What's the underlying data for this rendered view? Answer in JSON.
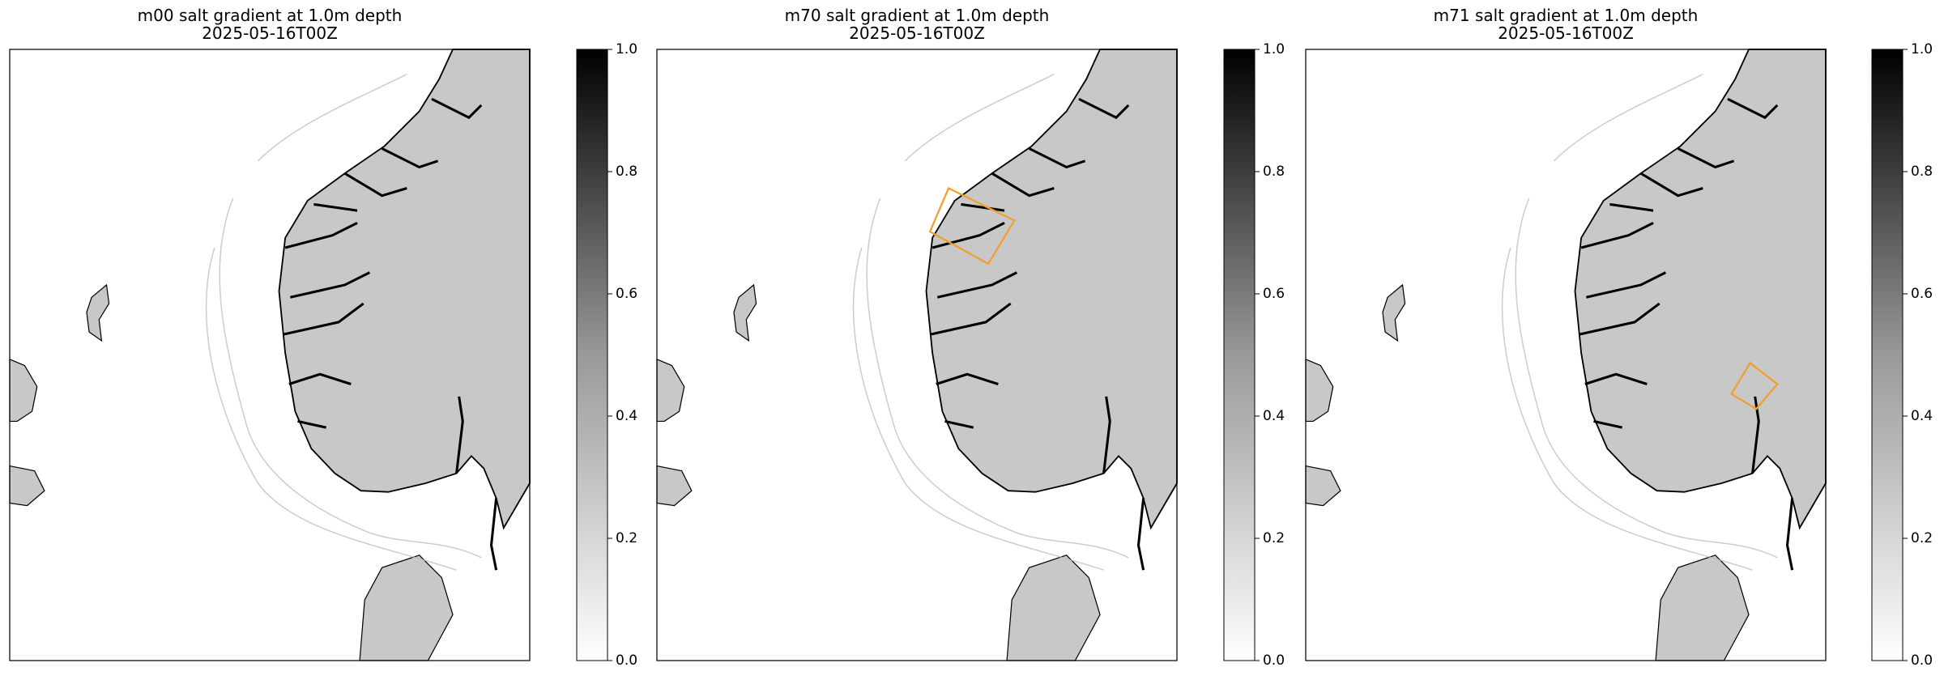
{
  "panels": [
    {
      "title": "m00 salt gradient at 1.0m depth",
      "subtitle": "2025-05-16T00Z",
      "colorbar": {
        "lim": [
          0,
          1
        ],
        "ticks": [
          {
            "value": 0,
            "label": "0.0"
          },
          {
            "value": 0.2,
            "label": "0.2"
          },
          {
            "value": 0.4,
            "label": "0.4"
          },
          {
            "value": 0.6,
            "label": "0.6"
          },
          {
            "value": 0.8,
            "label": "0.8"
          },
          {
            "value": 1,
            "label": "1.0"
          }
        ]
      }
    },
    {
      "title": "m70 salt gradient at 1.0m depth",
      "subtitle": "2025-05-16T00Z",
      "colorbar": {
        "lim": [
          0,
          1
        ],
        "ticks": [
          {
            "value": 0,
            "label": "0.0"
          },
          {
            "value": 0.2,
            "label": "0.2"
          },
          {
            "value": 0.4,
            "label": "0.4"
          },
          {
            "value": 0.6,
            "label": "0.6"
          },
          {
            "value": 0.8,
            "label": "0.8"
          },
          {
            "value": 1,
            "label": "1.0"
          }
        ]
      }
    },
    {
      "title": "m71 salt gradient at 1.0m depth",
      "subtitle": "2025-05-16T00Z",
      "colorbar": {
        "lim": [
          0,
          1
        ],
        "ticks": [
          {
            "value": 0,
            "label": "0.0"
          },
          {
            "value": 0.2,
            "label": "0.2"
          },
          {
            "value": 0.4,
            "label": "0.4"
          },
          {
            "value": 0.6,
            "label": "0.6"
          },
          {
            "value": 0.8,
            "label": "0.8"
          },
          {
            "value": 1,
            "label": "1.0"
          }
        ]
      }
    }
  ]
}
